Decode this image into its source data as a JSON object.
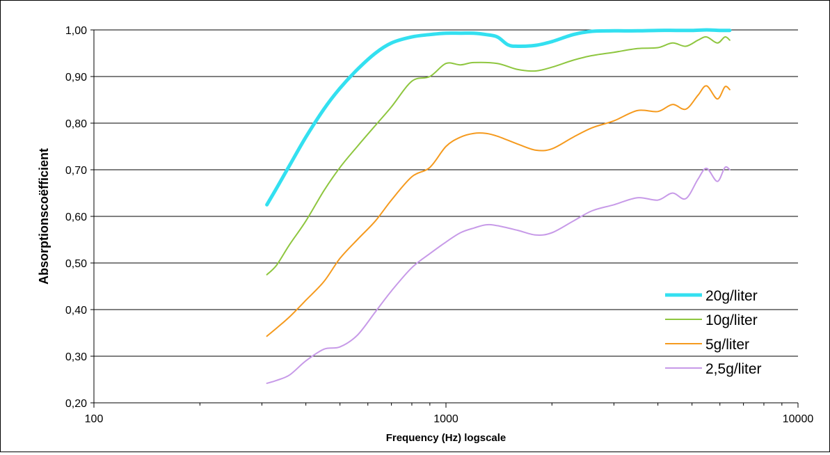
{
  "chart_data": {
    "type": "line",
    "title": "",
    "xlabel": "Frequency (Hz)  logscale",
    "ylabel": "Absorptionscoëfficient",
    "x_scale": "log",
    "xlim": [
      100,
      10000
    ],
    "ylim": [
      0.2,
      1.0
    ],
    "x_ticks": [
      100,
      1000,
      10000
    ],
    "x_tick_labels": [
      "100",
      "1000",
      "10000"
    ],
    "y_ticks": [
      0.2,
      0.3,
      0.4,
      0.5,
      0.6,
      0.7,
      0.8,
      0.9,
      1.0
    ],
    "y_tick_labels": [
      "0,20",
      "0,30",
      "0,40",
      "0,50",
      "0,60",
      "0,70",
      "0,80",
      "0,90",
      "1,00"
    ],
    "grid": "horizontal major",
    "legend_position": "bottom-right",
    "series": [
      {
        "name": "20g/liter",
        "color": "#33e0f0",
        "line_width": "thick",
        "points": [
          [
            310,
            0.625
          ],
          [
            330,
            0.66
          ],
          [
            360,
            0.71
          ],
          [
            400,
            0.77
          ],
          [
            450,
            0.83
          ],
          [
            500,
            0.875
          ],
          [
            560,
            0.915
          ],
          [
            630,
            0.95
          ],
          [
            700,
            0.972
          ],
          [
            800,
            0.985
          ],
          [
            900,
            0.99
          ],
          [
            1000,
            0.993
          ],
          [
            1100,
            0.993
          ],
          [
            1200,
            0.993
          ],
          [
            1300,
            0.99
          ],
          [
            1400,
            0.985
          ],
          [
            1500,
            0.968
          ],
          [
            1600,
            0.965
          ],
          [
            1800,
            0.967
          ],
          [
            2000,
            0.975
          ],
          [
            2300,
            0.99
          ],
          [
            2600,
            0.997
          ],
          [
            3000,
            0.998
          ],
          [
            3500,
            0.998
          ],
          [
            4000,
            0.999
          ],
          [
            4500,
            0.999
          ],
          [
            5000,
            0.999
          ],
          [
            5500,
            1.0
          ],
          [
            6000,
            0.999
          ],
          [
            6400,
            0.999
          ]
        ]
      },
      {
        "name": "10g/liter",
        "color": "#8ec63f",
        "line_width": "normal",
        "points": [
          [
            310,
            0.475
          ],
          [
            330,
            0.495
          ],
          [
            360,
            0.54
          ],
          [
            400,
            0.59
          ],
          [
            450,
            0.655
          ],
          [
            500,
            0.705
          ],
          [
            560,
            0.75
          ],
          [
            630,
            0.795
          ],
          [
            700,
            0.835
          ],
          [
            800,
            0.89
          ],
          [
            900,
            0.9
          ],
          [
            1000,
            0.928
          ],
          [
            1100,
            0.925
          ],
          [
            1200,
            0.93
          ],
          [
            1400,
            0.928
          ],
          [
            1600,
            0.915
          ],
          [
            1800,
            0.912
          ],
          [
            2000,
            0.92
          ],
          [
            2300,
            0.935
          ],
          [
            2600,
            0.945
          ],
          [
            3000,
            0.952
          ],
          [
            3500,
            0.96
          ],
          [
            4000,
            0.962
          ],
          [
            4400,
            0.972
          ],
          [
            4800,
            0.965
          ],
          [
            5200,
            0.978
          ],
          [
            5500,
            0.985
          ],
          [
            5900,
            0.972
          ],
          [
            6200,
            0.985
          ],
          [
            6400,
            0.978
          ]
        ]
      },
      {
        "name": "5g/liter",
        "color": "#f59a1e",
        "line_width": "normal",
        "points": [
          [
            310,
            0.343
          ],
          [
            330,
            0.36
          ],
          [
            360,
            0.385
          ],
          [
            400,
            0.42
          ],
          [
            450,
            0.46
          ],
          [
            500,
            0.51
          ],
          [
            560,
            0.55
          ],
          [
            630,
            0.59
          ],
          [
            700,
            0.635
          ],
          [
            800,
            0.685
          ],
          [
            900,
            0.705
          ],
          [
            1000,
            0.75
          ],
          [
            1100,
            0.77
          ],
          [
            1200,
            0.778
          ],
          [
            1300,
            0.778
          ],
          [
            1400,
            0.772
          ],
          [
            1600,
            0.755
          ],
          [
            1800,
            0.742
          ],
          [
            2000,
            0.745
          ],
          [
            2300,
            0.77
          ],
          [
            2600,
            0.79
          ],
          [
            3000,
            0.805
          ],
          [
            3500,
            0.827
          ],
          [
            4000,
            0.825
          ],
          [
            4400,
            0.84
          ],
          [
            4800,
            0.83
          ],
          [
            5200,
            0.86
          ],
          [
            5500,
            0.88
          ],
          [
            5900,
            0.852
          ],
          [
            6200,
            0.878
          ],
          [
            6400,
            0.872
          ]
        ]
      },
      {
        "name": "2,5g/liter",
        "color": "#c79ae8",
        "line_width": "normal",
        "points": [
          [
            310,
            0.242
          ],
          [
            330,
            0.248
          ],
          [
            360,
            0.26
          ],
          [
            400,
            0.29
          ],
          [
            450,
            0.315
          ],
          [
            500,
            0.32
          ],
          [
            560,
            0.345
          ],
          [
            630,
            0.395
          ],
          [
            700,
            0.44
          ],
          [
            800,
            0.49
          ],
          [
            900,
            0.52
          ],
          [
            1000,
            0.545
          ],
          [
            1100,
            0.565
          ],
          [
            1200,
            0.575
          ],
          [
            1300,
            0.582
          ],
          [
            1400,
            0.58
          ],
          [
            1600,
            0.57
          ],
          [
            1800,
            0.56
          ],
          [
            2000,
            0.565
          ],
          [
            2300,
            0.59
          ],
          [
            2600,
            0.612
          ],
          [
            3000,
            0.625
          ],
          [
            3500,
            0.64
          ],
          [
            4000,
            0.635
          ],
          [
            4400,
            0.65
          ],
          [
            4800,
            0.638
          ],
          [
            5200,
            0.68
          ],
          [
            5500,
            0.703
          ],
          [
            5900,
            0.675
          ],
          [
            6200,
            0.705
          ],
          [
            6400,
            0.7
          ]
        ]
      }
    ]
  }
}
